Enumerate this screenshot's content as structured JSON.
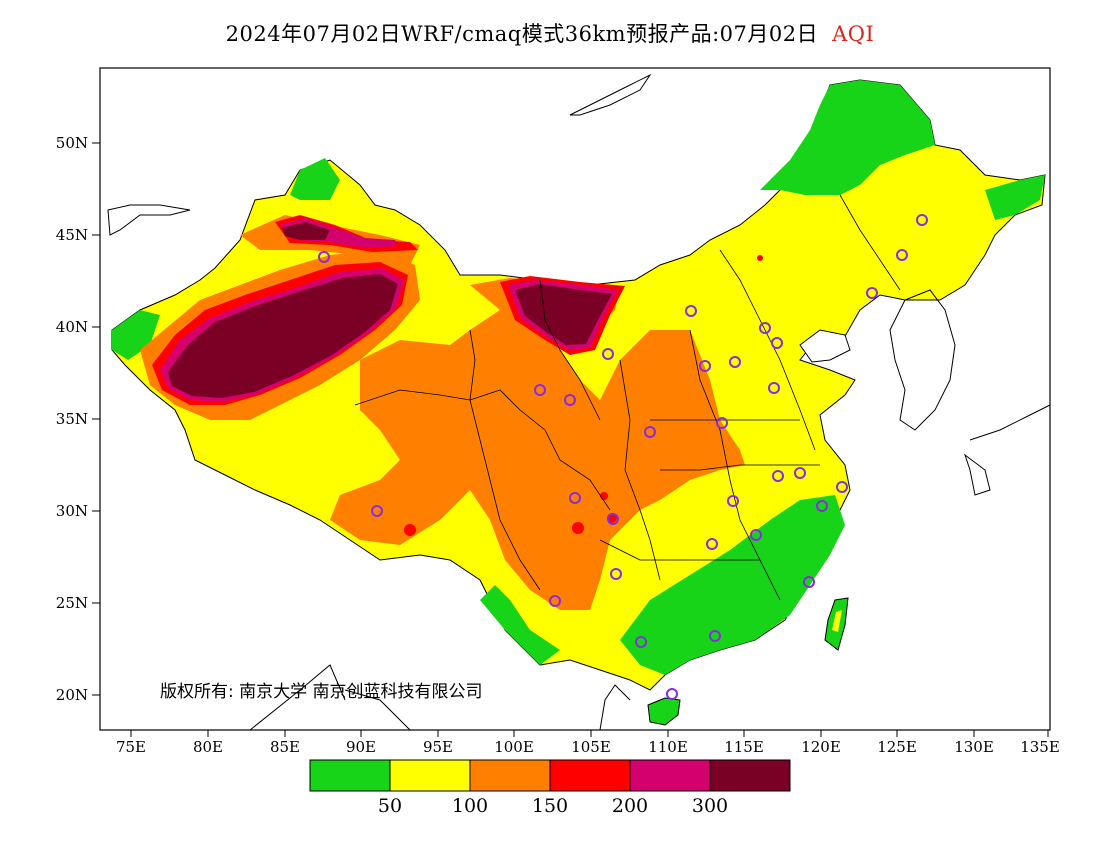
{
  "title": {
    "main": "2024年07月02日WRF/cmaq模式36km预报产品:07月02日",
    "product": "AQI"
  },
  "axes": {
    "lat_ticks": [
      "50N",
      "45N",
      "40N",
      "35N",
      "30N",
      "25N",
      "20N"
    ],
    "lon_ticks": [
      "75E",
      "80E",
      "85E",
      "90E",
      "95E",
      "100E",
      "105E",
      "110E",
      "115E",
      "120E",
      "125E",
      "130E",
      "135E"
    ]
  },
  "copyright": "版权所有: 南京大学 南京创蓝科技有限公司",
  "legend": {
    "colors": [
      "#18d418",
      "#ffff00",
      "#ff8000",
      "#ff0000",
      "#d4006e",
      "#7a0026"
    ],
    "labels": [
      "50",
      "100",
      "150",
      "200",
      "300"
    ]
  },
  "colors": {
    "good": "#18d418",
    "moderate": "#ffff00",
    "sensitive": "#ff8000",
    "unhealthy": "#ff0000",
    "very_unhealthy": "#d4006e",
    "hazardous": "#7a0026",
    "marker": "#8a2be2"
  }
}
